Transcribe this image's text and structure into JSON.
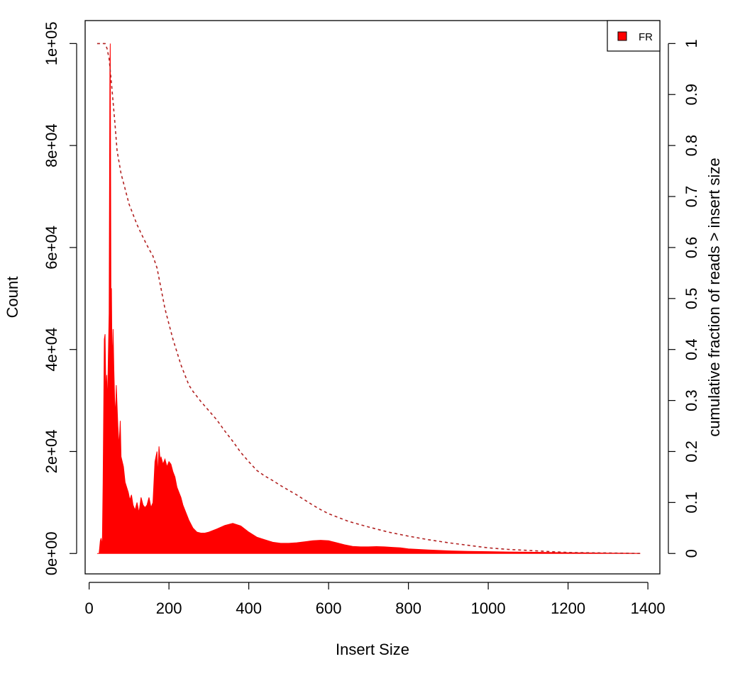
{
  "chart_data": {
    "type": "area",
    "xlabel": "Insert Size",
    "ylabel": "Count",
    "y2label": "cumulative fraction of reads > insert size",
    "xlim": [
      -10,
      1430
    ],
    "ylim": [
      -4000,
      104500
    ],
    "y2lim": [
      -0.04,
      1.045
    ],
    "x_ticks": [
      0,
      200,
      400,
      600,
      800,
      1000,
      1200,
      1400
    ],
    "x_tick_labels": [
      "0",
      "200",
      "400",
      "600",
      "800",
      "1000",
      "1200",
      "1400"
    ],
    "y_ticks": [
      0,
      20000,
      40000,
      60000,
      80000,
      100000
    ],
    "y_tick_labels": [
      "0e+00",
      "2e+04",
      "4e+04",
      "6e+04",
      "8e+04",
      "1e+05"
    ],
    "y2_ticks": [
      0,
      0.1,
      0.2,
      0.3,
      0.4,
      0.5,
      0.6,
      0.7,
      0.8,
      0.9,
      1
    ],
    "y2_tick_labels": [
      "0",
      "0.1",
      "0.2",
      "0.3",
      "0.4",
      "0.5",
      "0.6",
      "0.7",
      "0.8",
      "0.9",
      "1"
    ],
    "legend": {
      "position": "top-right",
      "entries": [
        {
          "label": "FR",
          "color": "#ff0000"
        }
      ]
    },
    "grid": false,
    "series": [
      {
        "name": "FR",
        "style": "filled-histogram",
        "color": "#ff0000",
        "x": [
          20,
          25,
          28,
          30,
          33,
          35,
          38,
          40,
          42,
          44,
          46,
          48,
          50,
          52,
          53,
          54,
          55,
          56,
          57,
          58,
          60,
          62,
          64,
          66,
          68,
          70,
          72,
          75,
          78,
          80,
          83,
          86,
          90,
          94,
          98,
          102,
          106,
          110,
          115,
          120,
          125,
          130,
          135,
          140,
          145,
          150,
          155,
          160,
          165,
          170,
          172,
          175,
          178,
          180,
          185,
          190,
          195,
          200,
          205,
          210,
          215,
          220,
          225,
          230,
          235,
          240,
          250,
          260,
          270,
          280,
          290,
          300,
          320,
          340,
          360,
          380,
          400,
          420,
          440,
          460,
          480,
          500,
          520,
          540,
          560,
          580,
          600,
          620,
          640,
          660,
          680,
          700,
          720,
          740,
          760,
          780,
          800,
          850,
          900,
          950,
          1000,
          1050,
          1100,
          1150,
          1200,
          1250,
          1300,
          1350,
          1380
        ],
        "values": [
          0,
          0,
          2500,
          3000,
          1500,
          14000,
          42000,
          43000,
          31000,
          35000,
          29000,
          38000,
          47000,
          95000,
          100000,
          71000,
          38000,
          52000,
          41000,
          38000,
          44000,
          36000,
          30000,
          27000,
          33000,
          29000,
          25000,
          21000,
          26000,
          19000,
          18000,
          17000,
          14000,
          13000,
          12000,
          10500,
          11500,
          9500,
          8500,
          10000,
          8000,
          11000,
          9500,
          9000,
          9500,
          11000,
          9000,
          10000,
          18000,
          20000,
          15000,
          21000,
          18000,
          19000,
          17500,
          18500,
          17000,
          18000,
          17500,
          16000,
          15000,
          13000,
          12000,
          11000,
          9500,
          8500,
          6500,
          5000,
          4200,
          4000,
          4000,
          4200,
          4800,
          5500,
          5900,
          5400,
          4200,
          3200,
          2700,
          2200,
          2000,
          2000,
          2100,
          2300,
          2500,
          2600,
          2500,
          2100,
          1700,
          1400,
          1300,
          1300,
          1350,
          1300,
          1200,
          1100,
          900,
          700,
          520,
          430,
          370,
          300,
          250,
          200,
          160,
          120,
          80,
          50,
          20
        ]
      },
      {
        "name": "cumulative fraction",
        "axis": "right",
        "style": "dashed-line",
        "color": "#b22222",
        "x": [
          20,
          25,
          30,
          35,
          40,
          45,
          50,
          55,
          60,
          65,
          70,
          80,
          90,
          100,
          110,
          120,
          130,
          140,
          150,
          160,
          170,
          180,
          190,
          200,
          210,
          220,
          230,
          240,
          250,
          260,
          280,
          300,
          320,
          340,
          360,
          380,
          400,
          420,
          440,
          460,
          480,
          500,
          520,
          540,
          560,
          580,
          600,
          650,
          700,
          750,
          800,
          850,
          900,
          950,
          1000,
          1050,
          1100,
          1150,
          1200,
          1250,
          1300,
          1380
        ],
        "values": [
          1.0,
          1.0,
          1.0,
          1.0,
          1.0,
          0.99,
          0.97,
          0.93,
          0.885,
          0.84,
          0.79,
          0.745,
          0.715,
          0.685,
          0.665,
          0.645,
          0.628,
          0.612,
          0.597,
          0.583,
          0.56,
          0.52,
          0.48,
          0.45,
          0.42,
          0.395,
          0.37,
          0.35,
          0.33,
          0.318,
          0.298,
          0.28,
          0.262,
          0.24,
          0.22,
          0.198,
          0.18,
          0.163,
          0.152,
          0.143,
          0.133,
          0.124,
          0.115,
          0.105,
          0.095,
          0.086,
          0.078,
          0.063,
          0.052,
          0.042,
          0.034,
          0.027,
          0.021,
          0.016,
          0.011,
          0.008,
          0.006,
          0.004,
          0.002,
          0.0015,
          0.001,
          0.0
        ]
      }
    ]
  }
}
